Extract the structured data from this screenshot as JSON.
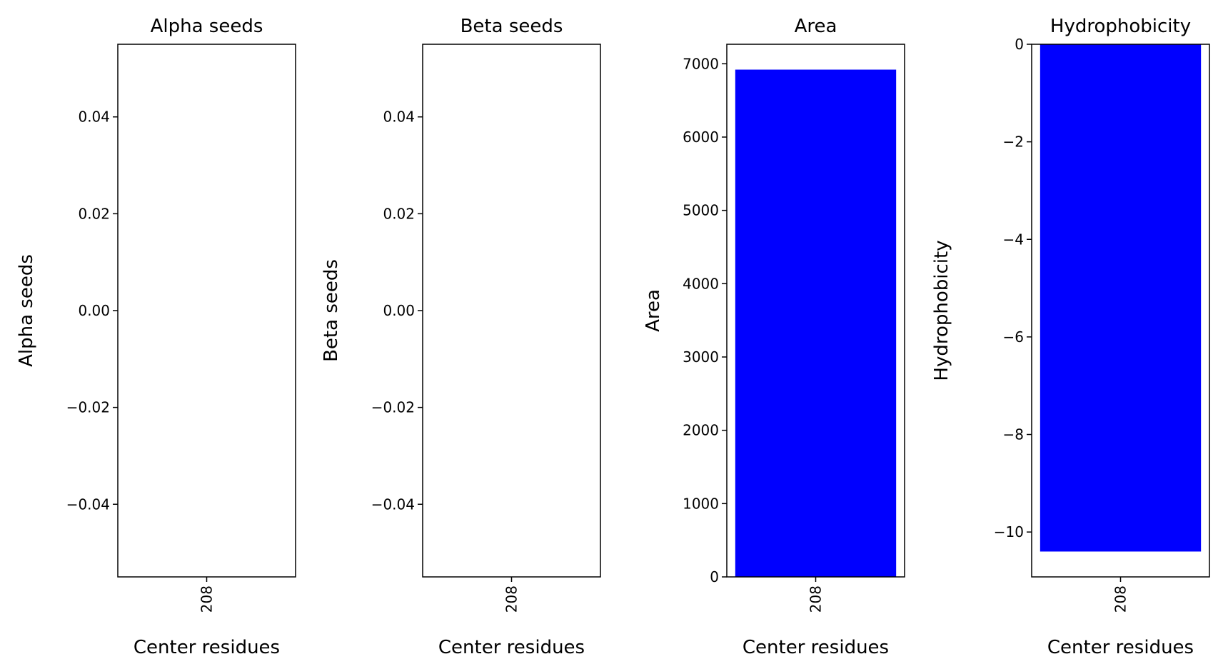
{
  "chart_data": [
    {
      "type": "bar",
      "title": "Alpha seeds",
      "xlabel": "Center residues",
      "ylabel": "Alpha seeds",
      "categories": [
        "208"
      ],
      "values": [
        0
      ],
      "ylim": [
        -0.055,
        0.055
      ],
      "yticks": [
        -0.04,
        -0.02,
        0.0,
        0.02,
        0.04
      ],
      "ytick_labels": [
        "−0.04",
        "−0.02",
        "0.00",
        "0.02",
        "0.04"
      ],
      "color": "#0000ff"
    },
    {
      "type": "bar",
      "title": "Beta seeds",
      "xlabel": "Center residues",
      "ylabel": "Beta seeds",
      "categories": [
        "208"
      ],
      "values": [
        0
      ],
      "ylim": [
        -0.055,
        0.055
      ],
      "yticks": [
        -0.04,
        -0.02,
        0.0,
        0.02,
        0.04
      ],
      "ytick_labels": [
        "−0.04",
        "−0.02",
        "0.00",
        "0.02",
        "0.04"
      ],
      "color": "#0000ff"
    },
    {
      "type": "bar",
      "title": "Area",
      "xlabel": "Center residues",
      "ylabel": "Area",
      "categories": [
        "208"
      ],
      "values": [
        6920
      ],
      "ylim": [
        0,
        7266
      ],
      "yticks": [
        0,
        1000,
        2000,
        3000,
        4000,
        5000,
        6000,
        7000
      ],
      "ytick_labels": [
        "0",
        "1000",
        "2000",
        "3000",
        "4000",
        "5000",
        "6000",
        "7000"
      ],
      "color": "#0000ff"
    },
    {
      "type": "bar",
      "title": "Hydrophobicity",
      "xlabel": "Center residues",
      "ylabel": "Hydrophobicity",
      "categories": [
        "208"
      ],
      "values": [
        -10.4
      ],
      "ylim": [
        -10.92,
        0
      ],
      "yticks": [
        -10,
        -8,
        -6,
        -4,
        -2,
        0
      ],
      "ytick_labels": [
        "−10",
        "−8",
        "−6",
        "−4",
        "−2",
        "0"
      ],
      "color": "#0000ff"
    }
  ]
}
